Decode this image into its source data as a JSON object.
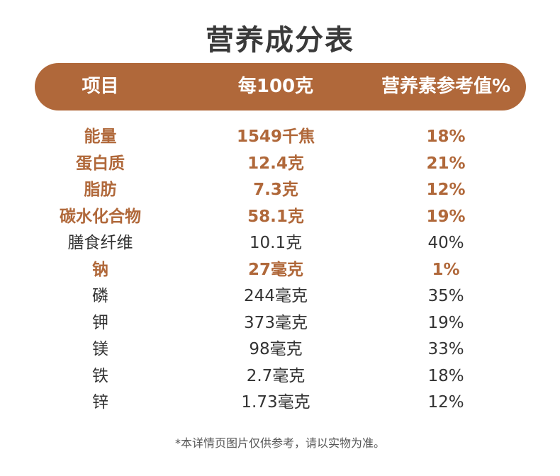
{
  "title": "营养成分表",
  "header": {
    "col_item": "项目",
    "col_per100": "每100克",
    "col_nrv": "营养素参考值%"
  },
  "rows": [
    {
      "name": "能量",
      "amount": "1549千焦",
      "nrv": "18%",
      "highlight": true
    },
    {
      "name": "蛋白质",
      "amount": "12.4克",
      "nrv": "21%",
      "highlight": true
    },
    {
      "name": "脂肪",
      "amount": "7.3克",
      "nrv": "12%",
      "highlight": true
    },
    {
      "name": "碳水化合物",
      "amount": "58.1克",
      "nrv": "19%",
      "highlight": true
    },
    {
      "name": "膳食纤维",
      "amount": "10.1克",
      "nrv": "40%",
      "highlight": false
    },
    {
      "name": "钠",
      "amount": "27毫克",
      "nrv": "1%",
      "highlight": true
    },
    {
      "name": "磷",
      "amount": "244毫克",
      "nrv": "35%",
      "highlight": false
    },
    {
      "name": "钾",
      "amount": "373毫克",
      "nrv": "19%",
      "highlight": false
    },
    {
      "name": "镁",
      "amount": "98毫克",
      "nrv": "33%",
      "highlight": false
    },
    {
      "name": "铁",
      "amount": "2.7毫克",
      "nrv": "18%",
      "highlight": false
    },
    {
      "name": "锌",
      "amount": "1.73毫克",
      "nrv": "12%",
      "highlight": false
    }
  ],
  "footnote": "*本详情页图片仅供参考，请以实物为准。",
  "colors": {
    "accent": "#b0683a",
    "text": "#333333",
    "title": "#3a3a3a"
  }
}
